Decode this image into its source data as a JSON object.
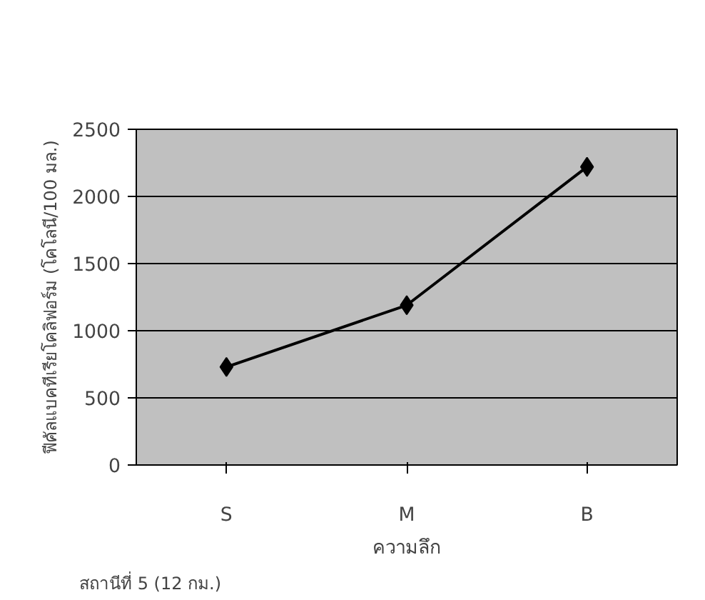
{
  "chart_data": {
    "type": "line",
    "xlabel": "ความลึก",
    "ylabel": "ฟีคัลแบคทีเรียโคลิฟอร์ม (โคโลนี/100 มล.)",
    "categories": [
      "S",
      "M",
      "B"
    ],
    "series": [
      {
        "color": "#000000",
        "values": [
          730,
          1190,
          2220
        ]
      }
    ],
    "ylim": [
      0,
      2500
    ],
    "yticks": [
      0,
      500,
      1000,
      1500,
      2000,
      2500
    ],
    "grid": "y",
    "marker": "diamond",
    "line_style": "solid",
    "annotations": [
      "สถานีที่ 5 (12 กม.)"
    ]
  }
}
